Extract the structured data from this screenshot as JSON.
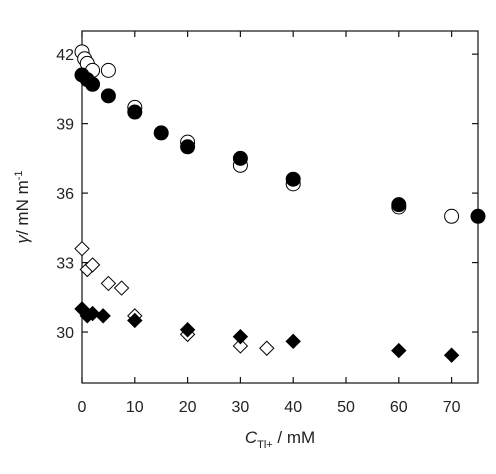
{
  "chart_data": {
    "type": "scatter",
    "title": "",
    "xlabel": {
      "symbol": "C",
      "subscript": "Tl+",
      "unit": " / mM"
    },
    "ylabel": {
      "symbol": "γ",
      "unit": "/ mN m",
      "superscript": "-1"
    },
    "xlim": [
      0,
      75
    ],
    "ylim": [
      27.8,
      43
    ],
    "xticks": [
      0,
      10,
      20,
      30,
      40,
      50,
      60,
      70
    ],
    "yticks": [
      30,
      33,
      36,
      39,
      42
    ],
    "grid": false,
    "legend": "none",
    "series": [
      {
        "marker": "circle-open",
        "x": [
          0,
          0.5,
          1,
          2,
          5,
          10,
          20,
          30,
          40,
          60,
          70
        ],
        "y": [
          42.1,
          41.8,
          41.6,
          41.3,
          41.3,
          39.7,
          38.2,
          37.2,
          36.4,
          35.4,
          35.0
        ]
      },
      {
        "marker": "circle-filled",
        "x": [
          0,
          1,
          2,
          5,
          10,
          15,
          20,
          30,
          40,
          60,
          75
        ],
        "y": [
          41.1,
          40.9,
          40.7,
          40.2,
          39.5,
          38.6,
          38.0,
          37.5,
          36.6,
          35.5,
          35.0
        ]
      },
      {
        "marker": "diamond-open",
        "x": [
          0,
          1,
          2,
          5,
          7.5,
          10,
          20,
          30,
          35
        ],
        "y": [
          33.6,
          32.7,
          32.9,
          32.1,
          31.9,
          30.7,
          29.9,
          29.4,
          29.3
        ]
      },
      {
        "marker": "diamond-filled",
        "x": [
          0,
          1,
          2,
          4,
          10,
          20,
          30,
          40,
          60,
          70
        ],
        "y": [
          31.0,
          30.7,
          30.8,
          30.7,
          30.5,
          30.1,
          29.8,
          29.6,
          29.2,
          29.0
        ]
      }
    ]
  }
}
